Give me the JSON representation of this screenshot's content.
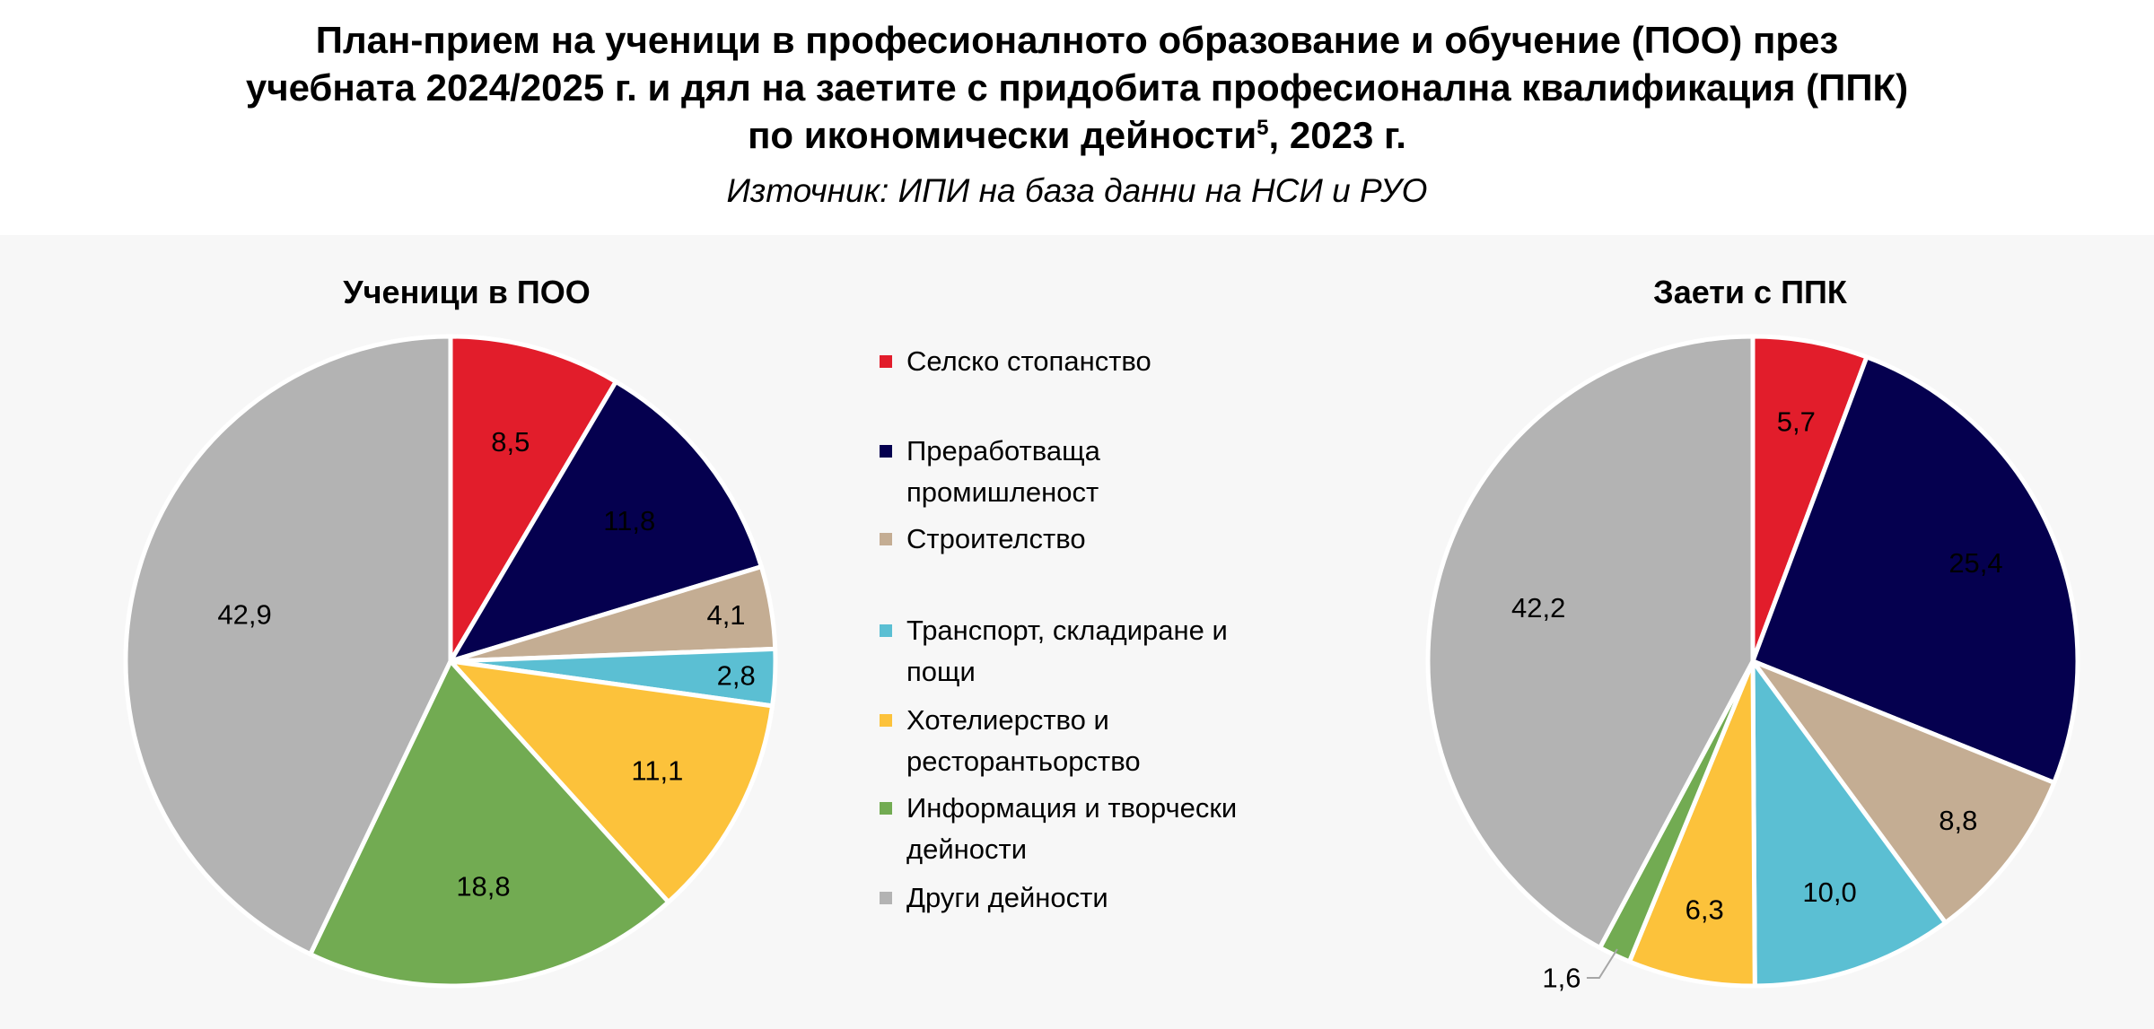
{
  "header": {
    "title_line1": "План-прием на ученици в професионалното образование и обучение (ПОО) през",
    "title_line2": "учебната 2024/2025 г. и дял на заетите с придобита професионална квалификация (ППК)",
    "title_line3_main": "по икономически дейности",
    "title_line3_sup": "5",
    "title_line3_tail": ", 2023 г.",
    "source": "Източник: ИПИ на база данни на НСИ и РУО"
  },
  "legend": [
    {
      "label": "Селско стопанство",
      "color": "#e21d2b"
    },
    {
      "label": "Преработваща промишленост",
      "color": "#05004f"
    },
    {
      "label": "Строителство",
      "color": "#c4ad93"
    },
    {
      "label": "Транспорт, складиране и пощи",
      "color": "#5bbfd3"
    },
    {
      "label": "Хотелиерство и ресторантьорство",
      "color": "#fcc23b"
    },
    {
      "label": "Информация и творчески дейности",
      "color": "#72ab52"
    },
    {
      "label": "Други дейности",
      "color": "#b3b3b3"
    }
  ],
  "chart_data": [
    {
      "type": "pie",
      "title": "Ученици в ПОО",
      "categories": [
        "Селско стопанство",
        "Преработваща промишленост",
        "Строителство",
        "Транспорт, складиране и пощи",
        "Хотелиерство и ресторантьорство",
        "Информация и творчески дейности",
        "Други дейности"
      ],
      "values": [
        8.5,
        11.8,
        4.1,
        2.8,
        11.1,
        18.8,
        42.9
      ],
      "labels": [
        "8,5",
        "11,8",
        "4,1",
        "2,8",
        "11,1",
        "18,8",
        "42,9"
      ],
      "colors": [
        "#e21d2b",
        "#05004f",
        "#c4ad93",
        "#5bbfd3",
        "#fcc23b",
        "#72ab52",
        "#b3b3b3"
      ],
      "start": "12 o'clock, clockwise",
      "legend_position": "right"
    },
    {
      "type": "pie",
      "title": "Заети с ППК",
      "categories": [
        "Селско стопанство",
        "Преработваща промишленост",
        "Строителство",
        "Транспорт, складиране и пощи",
        "Хотелиерство и ресторантьорство",
        "Информация и творчески дейности",
        "Други дейности"
      ],
      "values": [
        5.7,
        25.4,
        8.8,
        10.0,
        6.3,
        1.6,
        42.2
      ],
      "labels": [
        "5,7",
        "25,4",
        "8,8",
        "10,0",
        "6,3",
        "1,6",
        "42,2"
      ],
      "colors": [
        "#e21d2b",
        "#05004f",
        "#c4ad93",
        "#5bbfd3",
        "#fcc23b",
        "#72ab52",
        "#b3b3b3"
      ],
      "start": "12 o'clock, clockwise",
      "legend_position": "left"
    }
  ]
}
